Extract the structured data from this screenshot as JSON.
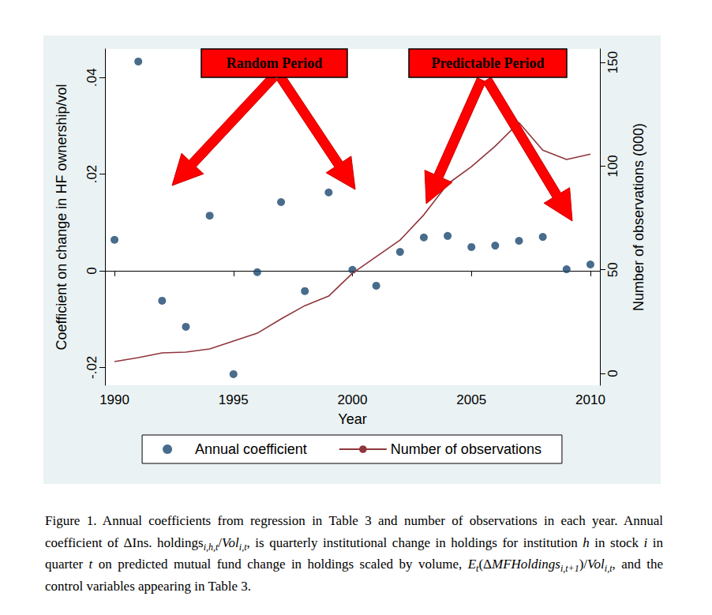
{
  "chart_data": {
    "type": "scatter",
    "x": [
      1990,
      1991,
      1992,
      1993,
      1994,
      1995,
      1996,
      1997,
      1998,
      1999,
      2000,
      2001,
      2002,
      2003,
      2004,
      2005,
      2006,
      2007,
      2008,
      2009,
      2010
    ],
    "series": [
      {
        "name": "Annual coefficient",
        "type": "scatter",
        "color": "#1a476f",
        "marker": "circle",
        "values": [
          0.0064,
          0.0433,
          -0.0062,
          -0.0116,
          0.0114,
          -0.0214,
          -0.0003,
          0.0142,
          -0.0042,
          0.0162,
          0.0002,
          -0.0031,
          0.0039,
          0.0069,
          0.0072,
          0.0049,
          0.0052,
          0.0062,
          0.007,
          0.0003,
          0.0013
        ]
      },
      {
        "name": "Number of observations",
        "type": "line",
        "axis": "y2",
        "color": "#90353b",
        "line_style": "solid",
        "values": [
          5.7,
          7.6,
          9.9,
          10.3,
          11.8,
          15.6,
          19.4,
          26.3,
          32.7,
          37.3,
          48.3,
          56.3,
          64.3,
          76.5,
          91.4,
          99.7,
          109.6,
          121.0,
          107.7,
          103.2,
          105.8
        ]
      }
    ],
    "x_label": "Year",
    "y_label": "Coefficient on change in HF ownership/vol",
    "y2_label": "Number of observations (000)",
    "xlim": [
      1989.6,
      2010.4
    ],
    "xticks": [
      1990,
      1995,
      2000,
      2005,
      2010
    ],
    "ylim": [
      -0.0237,
      0.0459
    ],
    "yticks": [
      {
        "value": -0.02,
        "label": "-.02"
      },
      0,
      {
        "value": 0.02,
        "label": ".02"
      },
      {
        "value": 0.04,
        "label": ".04"
      }
    ],
    "y2lim": [
      -5.7,
      156.5
    ],
    "y2ticks": [
      0,
      50,
      100,
      150
    ],
    "grid": false,
    "legend": "bottom",
    "annotations": [
      {
        "text": "Random Period"
      },
      {
        "text": "Predictable Period"
      }
    ],
    "caption": [
      {
        "t": "Figure 1. Annual coefficients from regression in Table 3 and number of observations in each year. Annual coefficient of ΔIns. holdings"
      },
      {
        "sub": "i,h,t"
      },
      {
        "t": "/"
      },
      {
        "i": "Vol"
      },
      {
        "sub": "i,t"
      },
      {
        "t": ", is quarterly institutional change in holdings for institution "
      },
      {
        "i": "h"
      },
      {
        "t": " in stock "
      },
      {
        "i": "i"
      },
      {
        "t": " in quarter "
      },
      {
        "i": "t"
      },
      {
        "t": " on predicted mutual fund change in holdings scaled by volume, "
      },
      {
        "i": "E"
      },
      {
        "sub": "t"
      },
      {
        "t": "(Δ"
      },
      {
        "i": "MFHoldings"
      },
      {
        "sub": "i,t+1"
      },
      {
        "t": ")/"
      },
      {
        "i": "Vol"
      },
      {
        "sub": "i,t"
      },
      {
        "t": ", and the control variables appearing in Table 3."
      }
    ]
  }
}
